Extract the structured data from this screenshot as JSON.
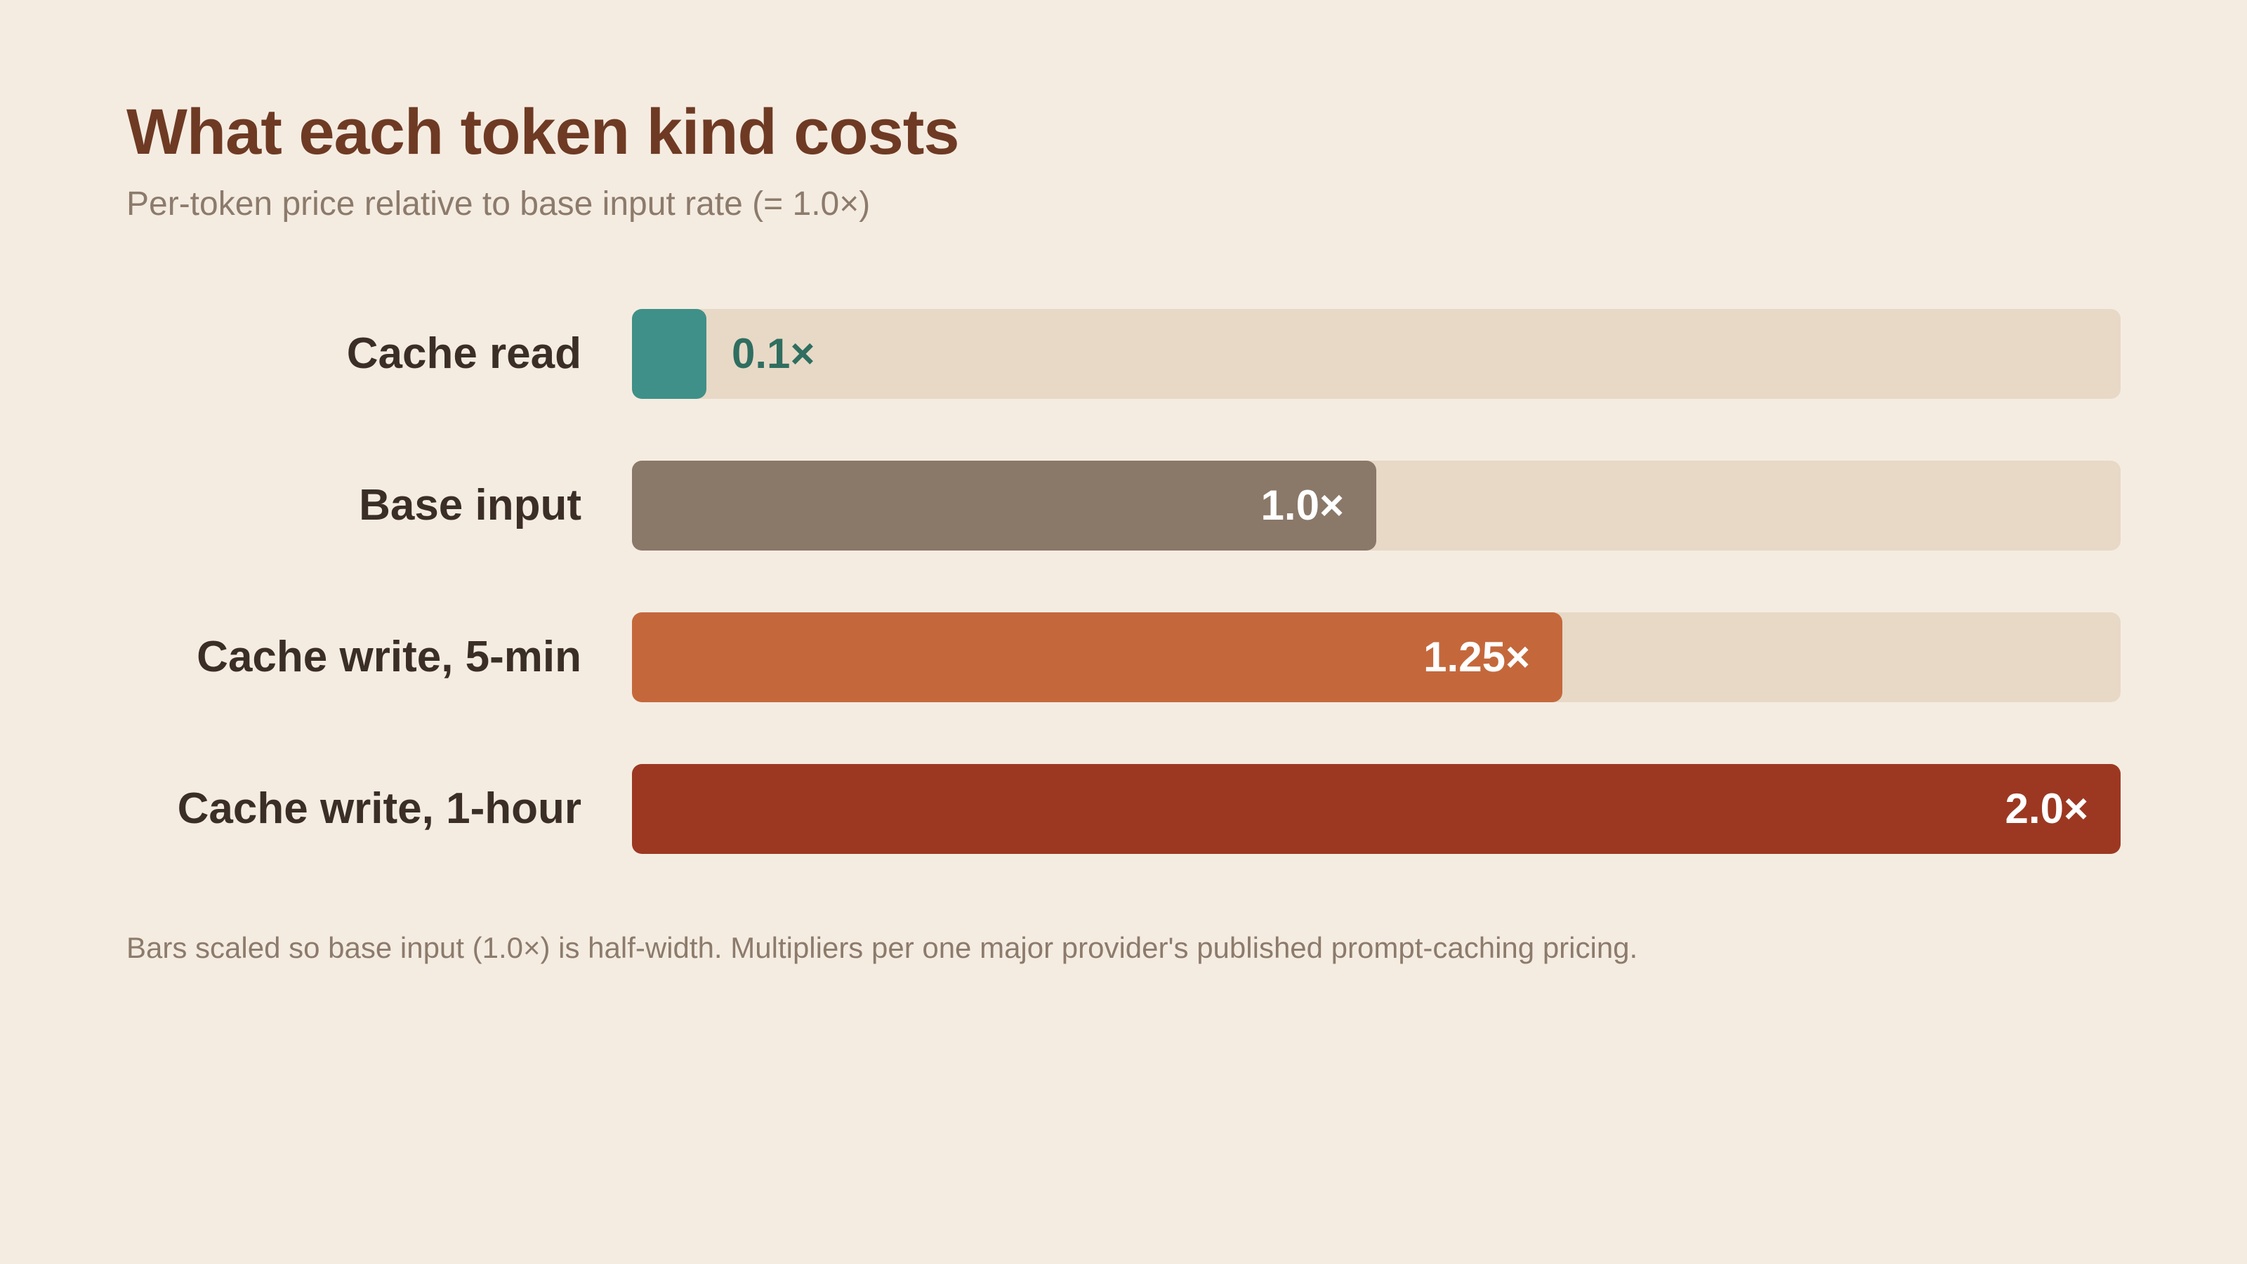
{
  "chart_data": {
    "type": "bar",
    "orientation": "horizontal",
    "title": "What each token kind costs",
    "subtitle": "Per-token price relative to base input rate (= 1.0×)",
    "categories": [
      "Cache read",
      "Base input",
      "Cache write, 5-min",
      "Cache write, 1-hour"
    ],
    "values": [
      0.1,
      1.0,
      1.25,
      2.0
    ],
    "value_labels": [
      "0.1×",
      "1.0×",
      "1.25×",
      "2.0×"
    ],
    "xlim": [
      0,
      2.0
    ],
    "grid": false,
    "bar_colors": [
      "#3F9088",
      "#8A7869",
      "#C4683C",
      "#9C3822"
    ],
    "value_label_outside_color": "#2F6E60",
    "track_color": "#E7D9C6",
    "footnote": "Bars scaled so base input (1.0×) is half-width. Multipliers per one major provider's published prompt-caching pricing."
  }
}
